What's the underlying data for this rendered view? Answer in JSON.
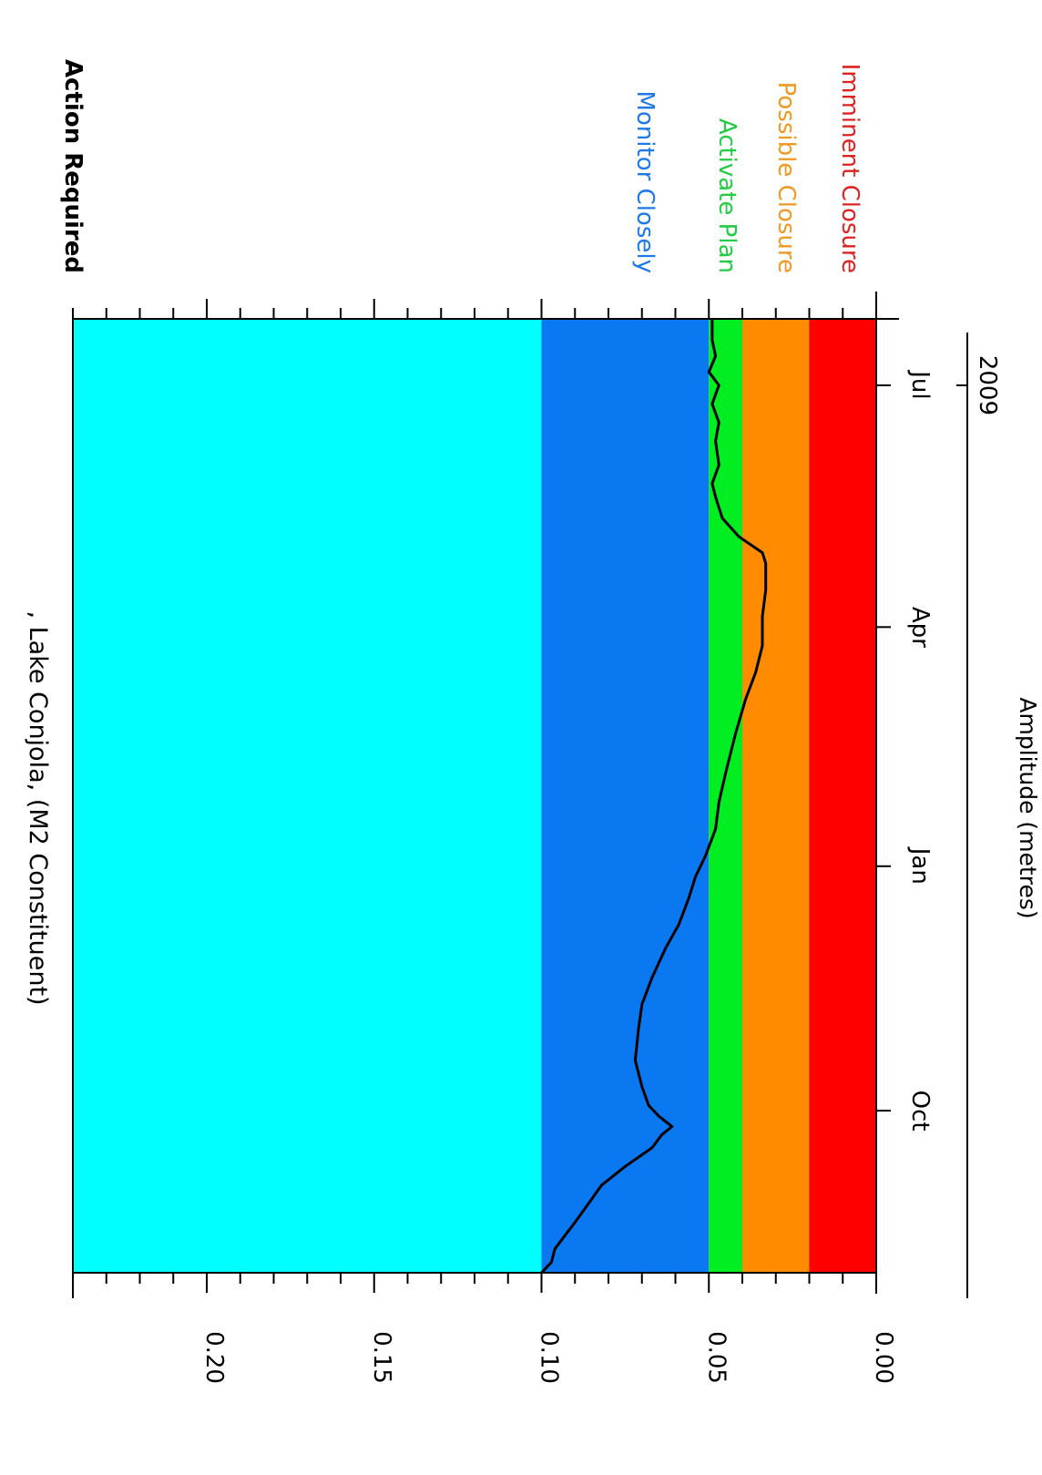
{
  "chart_data": {
    "type": "line",
    "orientation": "rotated-90-clockwise",
    "title": ", Lake Conjola,  (M2 Constituent)",
    "ylabel": "Amplitude  (metres)",
    "ylim": [
      0,
      0.24
    ],
    "yticks": [
      "0.00",
      "0.05",
      "0.10",
      "0.15",
      "0.20"
    ],
    "xlim": [
      "2008-08-01",
      "2009-07-26"
    ],
    "xticks": [
      {
        "date": "2008-10-01",
        "label": "Oct"
      },
      {
        "date": "2009-01-01",
        "label": "Jan"
      },
      {
        "date": "2009-04-01",
        "label": "Apr"
      },
      {
        "date": "2009-07-01",
        "label": "Jul"
      }
    ],
    "year_label": {
      "date": "2009-01-01",
      "label": "2009"
    },
    "legend_title": "Action Required",
    "bands": [
      {
        "label": "",
        "from": 0.1,
        "to": 0.24,
        "color": "#00ffff"
      },
      {
        "label": "Monitor Closely",
        "from": 0.05,
        "to": 0.1,
        "color": "#0a78f0",
        "text_color": "#1e78e6"
      },
      {
        "label": "Activate Plan",
        "from": 0.04,
        "to": 0.05,
        "color": "#00ee22",
        "text_color": "#22cc44"
      },
      {
        "label": "Possible Closure",
        "from": 0.02,
        "to": 0.04,
        "color": "#ff8c00",
        "text_color": "#ee9922"
      },
      {
        "label": "Imminent Closure",
        "from": 0.0,
        "to": 0.02,
        "color": "#ff0000",
        "text_color": "#dd2222"
      }
    ],
    "series": [
      {
        "color": "#000000",
        "points": [
          [
            "2008-08-01",
            0.1
          ],
          [
            "2008-08-05",
            0.097
          ],
          [
            "2008-08-10",
            0.096
          ],
          [
            "2008-08-15",
            0.093
          ],
          [
            "2008-08-20",
            0.09
          ],
          [
            "2008-08-27",
            0.086
          ],
          [
            "2008-09-03",
            0.082
          ],
          [
            "2008-09-10",
            0.075
          ],
          [
            "2008-09-17",
            0.067
          ],
          [
            "2008-09-22",
            0.064
          ],
          [
            "2008-09-25",
            0.061
          ],
          [
            "2008-09-29",
            0.065
          ],
          [
            "2008-10-03",
            0.068
          ],
          [
            "2008-10-10",
            0.07
          ],
          [
            "2008-10-20",
            0.072
          ],
          [
            "2008-11-01",
            0.071
          ],
          [
            "2008-11-10",
            0.07
          ],
          [
            "2008-11-20",
            0.067
          ],
          [
            "2008-12-01",
            0.063
          ],
          [
            "2008-12-10",
            0.059
          ],
          [
            "2008-12-20",
            0.056
          ],
          [
            "2008-12-28",
            0.054
          ],
          [
            "2009-01-05",
            0.051
          ],
          [
            "2009-01-15",
            0.048
          ],
          [
            "2009-01-25",
            0.047
          ],
          [
            "2009-02-05",
            0.045
          ],
          [
            "2009-02-20",
            0.042
          ],
          [
            "2009-03-05",
            0.039
          ],
          [
            "2009-03-15",
            0.036
          ],
          [
            "2009-03-25",
            0.034
          ],
          [
            "2009-04-05",
            0.034
          ],
          [
            "2009-04-15",
            0.033
          ],
          [
            "2009-04-25",
            0.033
          ],
          [
            "2009-04-29",
            0.034
          ],
          [
            "2009-05-05",
            0.041
          ],
          [
            "2009-05-12",
            0.046
          ],
          [
            "2009-05-20",
            0.048
          ],
          [
            "2009-05-25",
            0.049
          ],
          [
            "2009-06-01",
            0.047
          ],
          [
            "2009-06-10",
            0.048
          ],
          [
            "2009-06-17",
            0.047
          ],
          [
            "2009-06-24",
            0.049
          ],
          [
            "2009-07-01",
            0.047
          ],
          [
            "2009-07-06",
            0.05
          ],
          [
            "2009-07-12",
            0.048
          ],
          [
            "2009-07-18",
            0.049
          ],
          [
            "2009-07-26",
            0.049
          ]
        ]
      }
    ]
  }
}
